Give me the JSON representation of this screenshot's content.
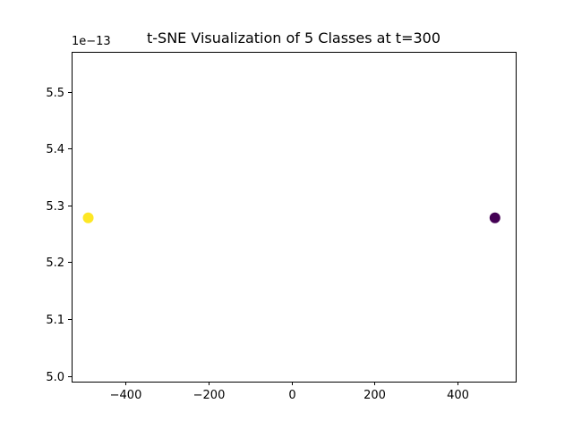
{
  "chart_data": {
    "type": "scatter",
    "title": "t-SNE Visualization of 5 Classes at t=300",
    "xlabel": "",
    "ylabel": "",
    "y_offset_label": "1e−13",
    "xlim": [
      -530,
      540
    ],
    "ylim": [
      4.99,
      5.57
    ],
    "x_ticks": [
      {
        "value": -400,
        "label": "−400"
      },
      {
        "value": -200,
        "label": "−200"
      },
      {
        "value": 0,
        "label": "0"
      },
      {
        "value": 200,
        "label": "200"
      },
      {
        "value": 400,
        "label": "400"
      }
    ],
    "y_ticks": [
      {
        "value": 5.0,
        "label": "5.0"
      },
      {
        "value": 5.1,
        "label": "5.1"
      },
      {
        "value": 5.2,
        "label": "5.2"
      },
      {
        "value": 5.3,
        "label": "5.3"
      },
      {
        "value": 5.4,
        "label": "5.4"
      },
      {
        "value": 5.5,
        "label": "5.5"
      }
    ],
    "points": [
      {
        "x": -490,
        "y": 5.278,
        "color": "#fde725"
      },
      {
        "x": 490,
        "y": 5.278,
        "color": "#440154"
      }
    ],
    "grid": false,
    "legend": "none"
  }
}
